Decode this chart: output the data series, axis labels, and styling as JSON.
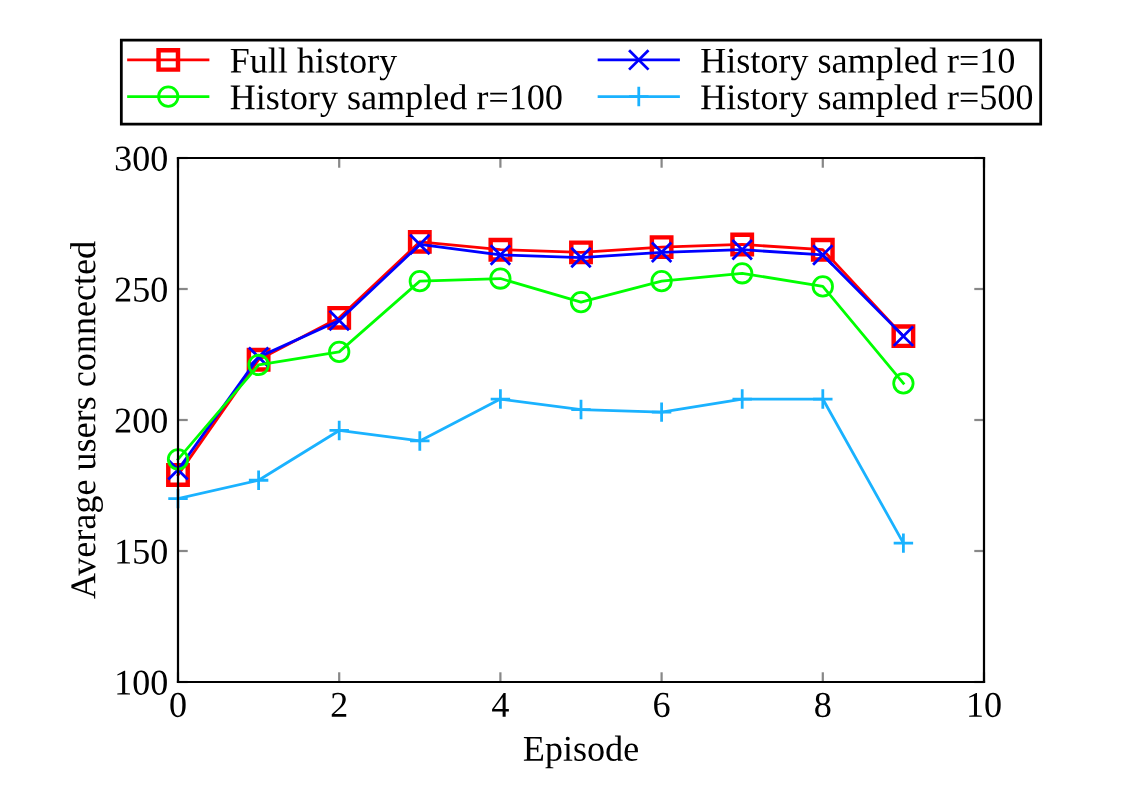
{
  "chart_data": {
    "type": "line",
    "xlabel": "Episode",
    "ylabel": "Average users connected",
    "x": [
      0,
      1,
      2,
      3,
      4,
      5,
      6,
      7,
      8,
      9
    ],
    "xlim": [
      0,
      10
    ],
    "xticks": [
      0,
      2,
      4,
      6,
      8,
      10
    ],
    "ylim": [
      100,
      300
    ],
    "yticks": [
      100,
      150,
      200,
      250,
      300
    ],
    "grid": false,
    "legend": "top",
    "line_style": "solid",
    "series": [
      {
        "name": "Full history",
        "color": "#ff0000",
        "marker": "square",
        "values": [
          179,
          223,
          239,
          268,
          265,
          264,
          266,
          267,
          265,
          232
        ]
      },
      {
        "name": "History sampled r=10",
        "color": "#0000ff",
        "marker": "cross",
        "values": [
          181,
          224,
          238,
          267,
          263,
          262,
          264,
          265,
          263,
          232
        ]
      },
      {
        "name": "History sampled r=100",
        "color": "#00ff00",
        "marker": "circle",
        "values": [
          185,
          221,
          226,
          253,
          254,
          245,
          253,
          256,
          251,
          214
        ]
      },
      {
        "name": "History sampled r=500",
        "color": "#1ab2ff",
        "marker": "plus",
        "values": [
          170,
          177,
          196,
          192,
          208,
          204,
          203,
          208,
          208,
          153
        ]
      }
    ]
  }
}
